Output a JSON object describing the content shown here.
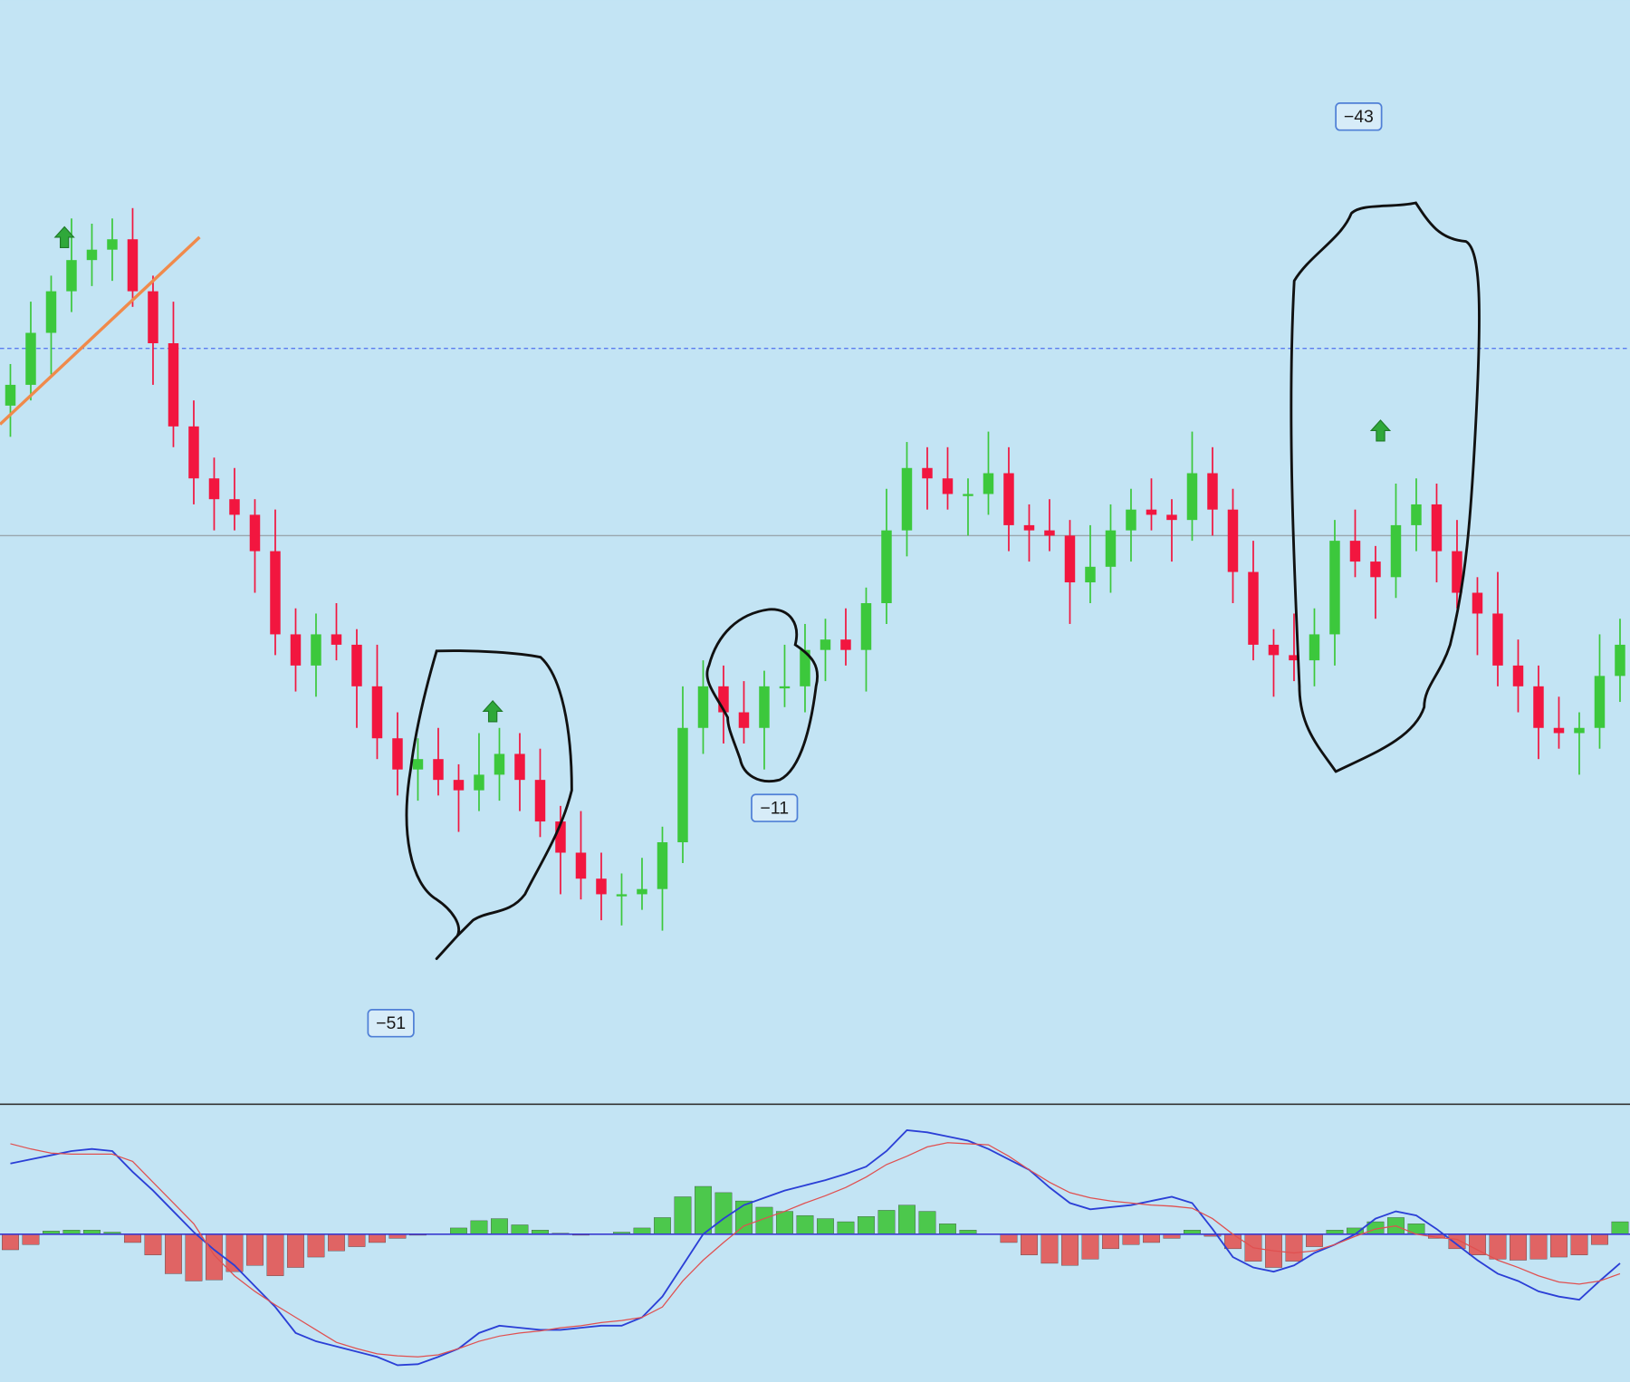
{
  "chart_data": [
    {
      "type": "candlestick",
      "ylim": [
        0,
        106
      ],
      "up_color": "#3cc83c",
      "down_color": "#f2163f",
      "reference_lines": [
        {
          "value": 72.5,
          "color": "#5b7cf0",
          "dashed": true
        },
        {
          "value": 54.5,
          "color": "#9aa6ad",
          "dashed": false
        }
      ],
      "annotations": [
        "−51",
        "−11",
        "−43"
      ],
      "open": [
        67,
        69,
        74,
        78,
        81,
        82,
        83,
        78,
        73,
        65,
        60,
        58,
        56.5,
        53,
        45,
        42,
        45,
        44,
        40,
        35,
        32,
        33,
        31,
        30,
        31.5,
        33.5,
        31,
        27,
        24,
        21.5,
        20,
        20,
        20.5,
        25,
        36,
        40,
        37.5,
        36,
        40,
        40,
        43.5,
        44.5,
        43.5,
        48,
        55,
        61,
        60,
        58.5,
        58.5,
        60.5,
        55.5,
        55,
        54.5,
        50,
        51.5,
        55,
        57,
        56.5,
        56,
        60.5,
        57,
        51,
        44,
        43,
        42.5,
        45,
        54,
        52,
        50.5,
        55.5,
        57.5,
        53,
        49,
        47,
        42,
        40,
        36,
        35.5,
        36,
        41
      ],
      "high": [
        71,
        77,
        79.5,
        85,
        84.5,
        85,
        86,
        79.5,
        77,
        67.5,
        62,
        61,
        58,
        57,
        47.5,
        47,
        48,
        45.5,
        44,
        37.5,
        35,
        36,
        32.5,
        35.5,
        36,
        35.5,
        34,
        28.5,
        28,
        24,
        22,
        23.5,
        26.5,
        40,
        42.5,
        42,
        40.5,
        41.5,
        44,
        46,
        46.5,
        47.5,
        49.5,
        59,
        63.5,
        63,
        63,
        60,
        64.5,
        63,
        57.5,
        58,
        56,
        55.5,
        57.5,
        59,
        60,
        58,
        64.5,
        63,
        59,
        54,
        45.5,
        47,
        47.5,
        56,
        57,
        53.5,
        59.5,
        60,
        59.5,
        56,
        50.5,
        51,
        44.5,
        42,
        39,
        37.5,
        45,
        46.5
      ],
      "low": [
        64,
        67.5,
        70,
        76,
        78.5,
        79,
        76.5,
        69,
        63,
        57.5,
        55,
        55,
        49,
        43,
        39.5,
        39,
        42.5,
        36,
        33,
        29.5,
        29,
        29.5,
        26,
        28,
        29,
        28,
        25.5,
        20,
        19.5,
        17.5,
        17,
        18.5,
        16.5,
        23,
        33.5,
        34.5,
        34.5,
        32,
        38,
        37.5,
        40.5,
        42,
        39.5,
        46,
        52.5,
        57,
        57,
        54.5,
        56.5,
        53,
        52,
        53,
        46,
        48,
        49,
        52,
        55,
        52,
        54,
        54.5,
        48,
        42.5,
        39,
        40.5,
        40,
        42,
        50.5,
        46.5,
        48.5,
        53,
        50,
        47.5,
        43,
        40,
        37.5,
        33,
        34,
        31.5,
        34,
        38.5
      ],
      "close": [
        69,
        74,
        78,
        81,
        82,
        83,
        78,
        73,
        65,
        60,
        58,
        56.5,
        53,
        45,
        42,
        45,
        44,
        40,
        35,
        32,
        33,
        31,
        30,
        31.5,
        33.5,
        31,
        27,
        24,
        21.5,
        20,
        20,
        20.5,
        25,
        36,
        40,
        37.5,
        36,
        40,
        40,
        43.5,
        44.5,
        43.5,
        48,
        55,
        61,
        60,
        58.5,
        58.5,
        60.5,
        55.5,
        55,
        54.5,
        50,
        51.5,
        55,
        57,
        56.5,
        56,
        60.5,
        57,
        51,
        44,
        43,
        42.5,
        45,
        54,
        52,
        50.5,
        55.5,
        57.5,
        53,
        49,
        47,
        42,
        40,
        36,
        35.5,
        36,
        41,
        44
      ]
    },
    {
      "type": "macd",
      "ylim": [
        -142,
        123
      ],
      "histogram": {
        "positive_color": "#4cc84c",
        "negative_color": "#e06464",
        "values": [
          -15,
          -10,
          3,
          4,
          4,
          2,
          -8,
          -20,
          -38,
          -45,
          -44,
          -36,
          -30,
          -40,
          -32,
          -22,
          -16,
          -12,
          -8,
          -4,
          -1,
          0,
          6,
          13,
          15,
          9,
          4,
          1,
          -1,
          0,
          2,
          6,
          16,
          36,
          46,
          40,
          32,
          26,
          22,
          18,
          15,
          12,
          17,
          23,
          28,
          22,
          10,
          4,
          0,
          -8,
          -20,
          -28,
          -30,
          -24,
          -14,
          -10,
          -8,
          -4,
          4,
          -2,
          -14,
          -26,
          -32,
          -26,
          -12,
          4,
          6,
          12,
          16,
          10,
          -4,
          -14,
          -20,
          -24,
          -25,
          -24,
          -22,
          -20,
          -10,
          12
        ]
      },
      "series": [
        {
          "color": "#2b3fd6",
          "values": [
            68,
            72,
            76,
            80,
            82,
            80,
            60,
            42,
            22,
            2,
            -15,
            -30,
            -50,
            -70,
            -95,
            -103,
            -108,
            -113,
            -118,
            -126,
            -125,
            -118,
            -110,
            -95,
            -88,
            -90,
            -92,
            -92,
            -90,
            -88,
            -88,
            -80,
            -60,
            -30,
            0,
            15,
            28,
            35,
            42,
            47,
            52,
            58,
            65,
            80,
            100,
            98,
            94,
            90,
            82,
            72,
            62,
            45,
            30,
            24,
            26,
            28,
            32,
            36,
            30,
            5,
            -22,
            -32,
            -36,
            -30,
            -18,
            -10,
            0,
            15,
            22,
            18,
            5,
            -10,
            -25,
            -38,
            -45,
            -55,
            -60,
            -63,
            -45,
            -28
          ]
        },
        {
          "color": "#e05050",
          "values": [
            87,
            82,
            78,
            77,
            77,
            77,
            70,
            50,
            30,
            10,
            -20,
            -40,
            -55,
            -68,
            -80,
            -92,
            -104,
            -110,
            -115,
            -117,
            -118,
            -116,
            -110,
            -103,
            -98,
            -95,
            -93,
            -90,
            -88,
            -85,
            -83,
            -80,
            -70,
            -45,
            -25,
            -8,
            8,
            15,
            22,
            30,
            37,
            45,
            55,
            67,
            75,
            84,
            88,
            87,
            86,
            75,
            62,
            50,
            40,
            35,
            32,
            30,
            28,
            27,
            25,
            15,
            0,
            -13,
            -16,
            -18,
            -16,
            -10,
            -2,
            5,
            8,
            0,
            -3,
            -5,
            -15,
            -25,
            -32,
            -40,
            -46,
            -48,
            -45,
            -38
          ]
        }
      ]
    }
  ]
}
